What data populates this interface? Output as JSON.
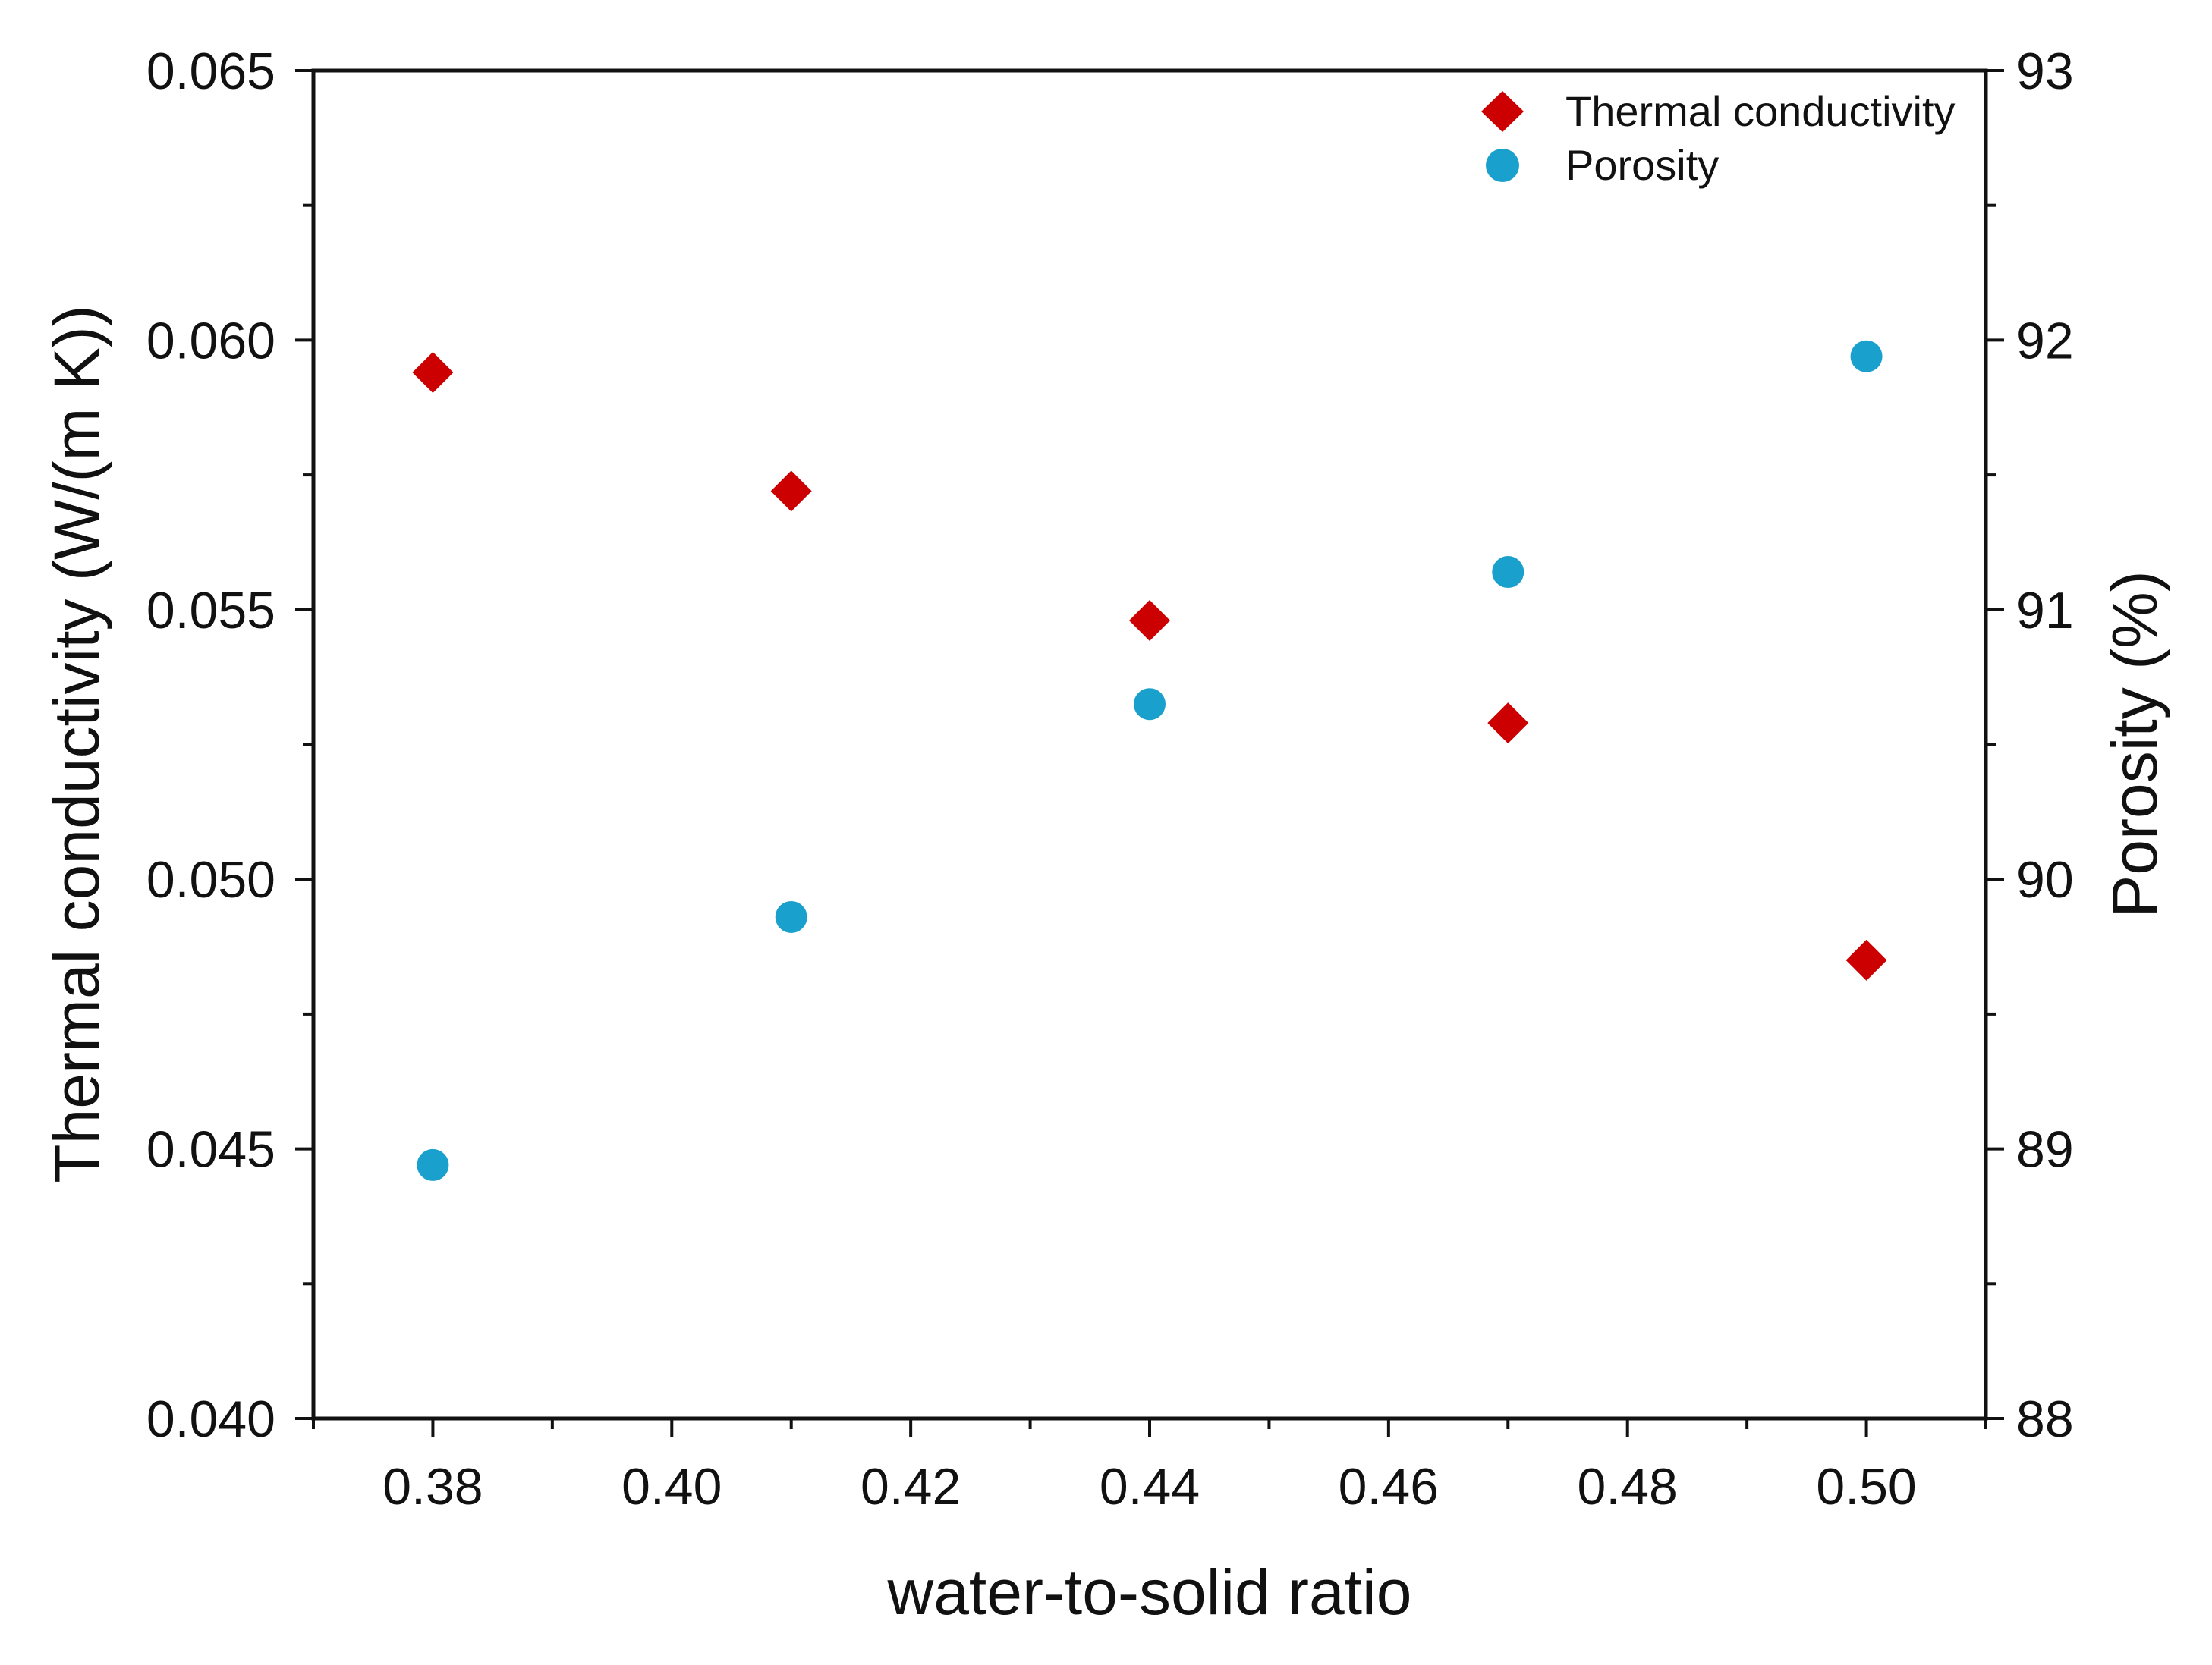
{
  "chart_data": {
    "type": "scatter",
    "title": "",
    "xlabel": "water-to-solid ratio",
    "ylabel": "Thermal conductivity (W/(m K))",
    "y2label": "Porosity (%)",
    "xlim": [
      0.37,
      0.51
    ],
    "ylim": [
      0.04,
      0.065
    ],
    "y2lim": [
      88,
      93
    ],
    "x_ticks": [
      "0.38",
      "0.40",
      "0.42",
      "0.44",
      "0.46",
      "0.48",
      "0.50"
    ],
    "y_ticks": [
      "0.040",
      "0.045",
      "0.050",
      "0.055",
      "0.060",
      "0.065"
    ],
    "y2_ticks": [
      "88",
      "89",
      "90",
      "91",
      "92",
      "93"
    ],
    "legend_position": "top-right",
    "series": [
      {
        "name": "Thermal conductivity",
        "axis": "left",
        "marker": "diamond",
        "color": "#cc0000",
        "x": [
          0.38,
          0.41,
          0.44,
          0.47,
          0.5
        ],
        "y": [
          0.0594,
          0.0572,
          0.0548,
          0.0529,
          0.0485
        ]
      },
      {
        "name": "Porosity",
        "axis": "right",
        "marker": "circle",
        "color": "#1aa0cc",
        "x": [
          0.38,
          0.41,
          0.44,
          0.47,
          0.5
        ],
        "y": [
          88.94,
          89.86,
          90.65,
          91.14,
          91.94
        ]
      }
    ]
  }
}
